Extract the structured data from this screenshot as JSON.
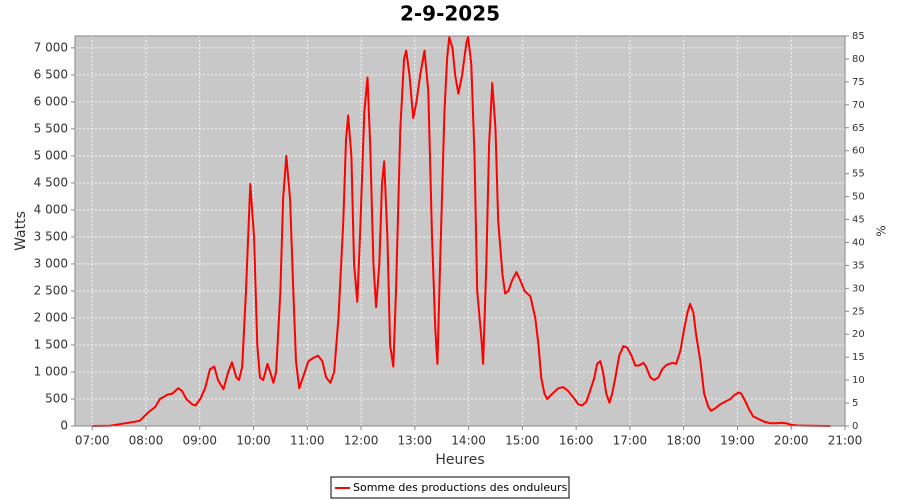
{
  "chart_data": {
    "type": "line",
    "title": "2-9-2025",
    "x_label": "Heures",
    "y_label": "Watts",
    "y2_label": "%",
    "grid": true,
    "legend": "bottom",
    "xlim": [
      6.68,
      21
    ],
    "ylim": [
      0,
      7220
    ],
    "y2lim": [
      0,
      85
    ],
    "xticks": [
      {
        "value": 7,
        "label": "07:00"
      },
      {
        "value": 8,
        "label": "08:00"
      },
      {
        "value": 9,
        "label": "09:00"
      },
      {
        "value": 10,
        "label": "10:00"
      },
      {
        "value": 11,
        "label": "11:00"
      },
      {
        "value": 12,
        "label": "12:00"
      },
      {
        "value": 13,
        "label": "13:00"
      },
      {
        "value": 14,
        "label": "14:00"
      },
      {
        "value": 15,
        "label": "15:00"
      },
      {
        "value": 16,
        "label": "16:00"
      },
      {
        "value": 17,
        "label": "17:00"
      },
      {
        "value": 18,
        "label": "18:00"
      },
      {
        "value": 19,
        "label": "19:00"
      },
      {
        "value": 20,
        "label": "20:00"
      },
      {
        "value": 21,
        "label": "21:00"
      }
    ],
    "yticks": [
      0,
      500,
      {
        "value": 1000,
        "label": "1 000"
      },
      {
        "value": 1500,
        "label": "1 500"
      },
      {
        "value": 2000,
        "label": "2 000"
      },
      {
        "value": 2500,
        "label": "2 500"
      },
      {
        "value": 3000,
        "label": "3 000"
      },
      {
        "value": 3500,
        "label": "3 500"
      },
      {
        "value": 4000,
        "label": "4 000"
      },
      {
        "value": 4500,
        "label": "4 500"
      },
      {
        "value": 5000,
        "label": "5 000"
      },
      {
        "value": 5500,
        "label": "5 500"
      },
      {
        "value": 6000,
        "label": "6 000"
      },
      {
        "value": 6500,
        "label": "6 500"
      },
      {
        "value": 7000,
        "label": "7 000"
      }
    ],
    "y2ticks": [
      0,
      5,
      10,
      15,
      20,
      25,
      30,
      35,
      40,
      45,
      50,
      55,
      60,
      65,
      70,
      75,
      80,
      85
    ],
    "x": [
      7.0,
      7.33,
      7.61,
      7.8,
      7.89,
      8.04,
      8.17,
      8.26,
      8.4,
      8.49,
      8.6,
      8.67,
      8.75,
      8.86,
      8.92,
      9.01,
      9.1,
      9.19,
      9.27,
      9.34,
      9.44,
      9.53,
      9.6,
      9.68,
      9.73,
      9.79,
      9.86,
      9.94,
      10.01,
      10.07,
      10.12,
      10.18,
      10.26,
      10.31,
      10.37,
      10.42,
      10.5,
      10.55,
      10.61,
      10.68,
      10.74,
      10.79,
      10.85,
      10.92,
      11.02,
      11.13,
      11.2,
      11.28,
      11.35,
      11.43,
      11.5,
      11.58,
      11.67,
      11.72,
      11.76,
      11.82,
      11.87,
      11.93,
      11.98,
      12.06,
      12.12,
      12.17,
      12.23,
      12.28,
      12.34,
      12.39,
      12.43,
      12.49,
      12.54,
      12.6,
      12.65,
      12.73,
      12.8,
      12.84,
      12.9,
      12.97,
      13.03,
      13.1,
      13.18,
      13.25,
      13.32,
      13.38,
      13.42,
      13.47,
      13.55,
      13.6,
      13.64,
      13.7,
      13.75,
      13.81,
      13.88,
      13.96,
      13.99,
      14.05,
      14.11,
      14.16,
      14.24,
      14.27,
      14.33,
      14.38,
      14.44,
      14.5,
      14.55,
      14.63,
      14.68,
      14.74,
      14.81,
      14.89,
      14.96,
      15.04,
      15.15,
      15.24,
      15.3,
      15.35,
      15.41,
      15.46,
      15.56,
      15.67,
      15.76,
      15.85,
      15.97,
      16.04,
      16.11,
      16.19,
      16.26,
      16.34,
      16.39,
      16.45,
      16.5,
      16.56,
      16.62,
      16.67,
      16.73,
      16.8,
      16.88,
      16.95,
      17.03,
      17.1,
      17.17,
      17.25,
      17.3,
      17.38,
      17.45,
      17.53,
      17.6,
      17.68,
      17.79,
      17.86,
      17.94,
      18.01,
      18.07,
      18.12,
      18.18,
      18.23,
      18.31,
      18.38,
      18.46,
      18.51,
      18.59,
      18.68,
      18.79,
      18.87,
      18.94,
      19.02,
      19.07,
      19.15,
      19.22,
      19.29,
      19.39,
      19.5,
      19.61,
      19.72,
      19.81,
      19.91,
      20.0,
      20.11,
      20.35,
      20.73
    ],
    "series": [
      {
        "name": "Somme des productions des onduleurs",
        "color": "#ff0000",
        "values": [
          0,
          5,
          50,
          80,
          100,
          250,
          350,
          500,
          580,
          600,
          700,
          650,
          500,
          400,
          380,
          500,
          700,
          1050,
          1100,
          850,
          680,
          1000,
          1180,
          900,
          850,
          1100,
          2500,
          4480,
          3500,
          1500,
          900,
          850,
          1150,
          1000,
          800,
          1000,
          2500,
          4200,
          5000,
          4200,
          2500,
          1200,
          700,
          900,
          1200,
          1270,
          1300,
          1200,
          900,
          800,
          1000,
          2000,
          3800,
          5300,
          5750,
          5000,
          3000,
          2300,
          3500,
          5800,
          6450,
          5200,
          3000,
          2200,
          3000,
          4500,
          4900,
          3500,
          1500,
          1100,
          2500,
          5500,
          6800,
          6950,
          6500,
          5700,
          6000,
          6500,
          6950,
          6200,
          3500,
          1800,
          1150,
          3000,
          5800,
          6800,
          7200,
          7000,
          6500,
          6150,
          6500,
          7100,
          7200,
          6700,
          5000,
          2500,
          1600,
          1150,
          3000,
          5200,
          6350,
          5500,
          3800,
          2800,
          2450,
          2500,
          2700,
          2850,
          2700,
          2500,
          2400,
          2000,
          1500,
          900,
          600,
          500,
          600,
          700,
          720,
          650,
          500,
          400,
          380,
          450,
          650,
          900,
          1150,
          1200,
          1000,
          600,
          430,
          600,
          900,
          1300,
          1480,
          1450,
          1300,
          1120,
          1120,
          1170,
          1100,
          900,
          850,
          900,
          1050,
          1130,
          1170,
          1150,
          1400,
          1800,
          2100,
          2260,
          2100,
          1700,
          1200,
          600,
          350,
          280,
          330,
          400,
          460,
          500,
          570,
          620,
          600,
          450,
          300,
          180,
          130,
          80,
          50,
          50,
          60,
          50,
          20,
          10,
          5,
          0
        ]
      }
    ]
  }
}
